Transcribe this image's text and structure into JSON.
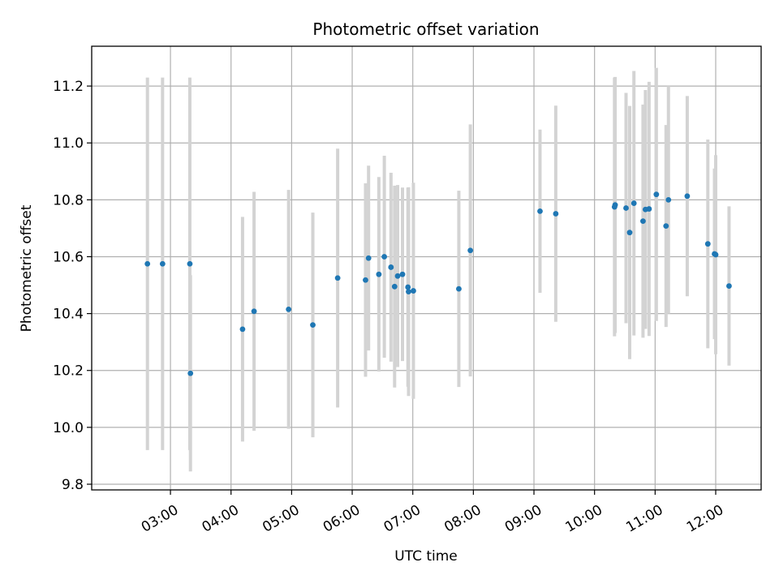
{
  "chart_data": {
    "type": "scatter",
    "title": "Photometric offset variation",
    "xlabel": "UTC time",
    "ylabel": "Photometric offset",
    "grid": true,
    "legend": "none",
    "x_unit": "hours (UTC)",
    "xlim": [
      1.7,
      12.75
    ],
    "ylim": [
      9.78,
      11.34
    ],
    "xticks": [
      {
        "value": 3,
        "label": "03:00"
      },
      {
        "value": 4,
        "label": "04:00"
      },
      {
        "value": 5,
        "label": "05:00"
      },
      {
        "value": 6,
        "label": "06:00"
      },
      {
        "value": 7,
        "label": "07:00"
      },
      {
        "value": 8,
        "label": "08:00"
      },
      {
        "value": 9,
        "label": "09:00"
      },
      {
        "value": 10,
        "label": "10:00"
      },
      {
        "value": 11,
        "label": "11:00"
      },
      {
        "value": 12,
        "label": "12:00"
      }
    ],
    "yticks": [
      {
        "value": 9.8,
        "label": "9.8"
      },
      {
        "value": 10.0,
        "label": "10.0"
      },
      {
        "value": 10.2,
        "label": "10.2"
      },
      {
        "value": 10.4,
        "label": "10.4"
      },
      {
        "value": 10.6,
        "label": "10.6"
      },
      {
        "value": 10.8,
        "label": "10.8"
      },
      {
        "value": 11.0,
        "label": "11.0"
      },
      {
        "value": 11.2,
        "label": "11.2"
      }
    ],
    "points": [
      {
        "x": 2.62,
        "y": 10.575,
        "err": 0.655
      },
      {
        "x": 2.87,
        "y": 10.575,
        "err": 0.655
      },
      {
        "x": 3.32,
        "y": 10.575,
        "err": 0.655
      },
      {
        "x": 3.33,
        "y": 10.19,
        "err": 0.345
      },
      {
        "x": 4.19,
        "y": 10.345,
        "err": 0.395
      },
      {
        "x": 4.38,
        "y": 10.408,
        "err": 0.42
      },
      {
        "x": 4.95,
        "y": 10.415,
        "err": 0.42
      },
      {
        "x": 5.35,
        "y": 10.36,
        "err": 0.395
      },
      {
        "x": 5.76,
        "y": 10.525,
        "err": 0.455
      },
      {
        "x": 6.22,
        "y": 10.518,
        "err": 0.34
      },
      {
        "x": 6.27,
        "y": 10.595,
        "err": 0.325
      },
      {
        "x": 6.44,
        "y": 10.538,
        "err": 0.342
      },
      {
        "x": 6.53,
        "y": 10.6,
        "err": 0.355
      },
      {
        "x": 6.64,
        "y": 10.563,
        "err": 0.332
      },
      {
        "x": 6.7,
        "y": 10.495,
        "err": 0.355
      },
      {
        "x": 6.75,
        "y": 10.532,
        "err": 0.32
      },
      {
        "x": 6.83,
        "y": 10.538,
        "err": 0.305
      },
      {
        "x": 6.92,
        "y": 10.493,
        "err": 0.35
      },
      {
        "x": 6.93,
        "y": 10.477,
        "err": 0.367
      },
      {
        "x": 7.01,
        "y": 10.48,
        "err": 0.38
      },
      {
        "x": 7.76,
        "y": 10.487,
        "err": 0.345
      },
      {
        "x": 7.95,
        "y": 10.622,
        "err": 0.443
      },
      {
        "x": 9.1,
        "y": 10.76,
        "err": 0.287
      },
      {
        "x": 9.36,
        "y": 10.751,
        "err": 0.38
      },
      {
        "x": 10.33,
        "y": 10.775,
        "err": 0.455
      },
      {
        "x": 10.34,
        "y": 10.782,
        "err": 0.45
      },
      {
        "x": 10.52,
        "y": 10.771,
        "err": 0.405
      },
      {
        "x": 10.58,
        "y": 10.685,
        "err": 0.445
      },
      {
        "x": 10.65,
        "y": 10.788,
        "err": 0.465
      },
      {
        "x": 10.8,
        "y": 10.725,
        "err": 0.41
      },
      {
        "x": 10.84,
        "y": 10.766,
        "err": 0.42
      },
      {
        "x": 10.9,
        "y": 10.768,
        "err": 0.447
      },
      {
        "x": 11.02,
        "y": 10.819,
        "err": 0.445
      },
      {
        "x": 11.18,
        "y": 10.708,
        "err": 0.355
      },
      {
        "x": 11.22,
        "y": 10.8,
        "err": 0.4
      },
      {
        "x": 11.53,
        "y": 10.813,
        "err": 0.352
      },
      {
        "x": 11.87,
        "y": 10.645,
        "err": 0.367
      },
      {
        "x": 11.98,
        "y": 10.61,
        "err": 0.3
      },
      {
        "x": 12.0,
        "y": 10.607,
        "err": 0.35
      },
      {
        "x": 12.22,
        "y": 10.497,
        "err": 0.28
      }
    ]
  },
  "colors": {
    "marker": "#1f77b4",
    "errorbar": "#d3d3d3",
    "grid": "#b0b0b0",
    "axis": "#000000",
    "background": "#ffffff"
  }
}
